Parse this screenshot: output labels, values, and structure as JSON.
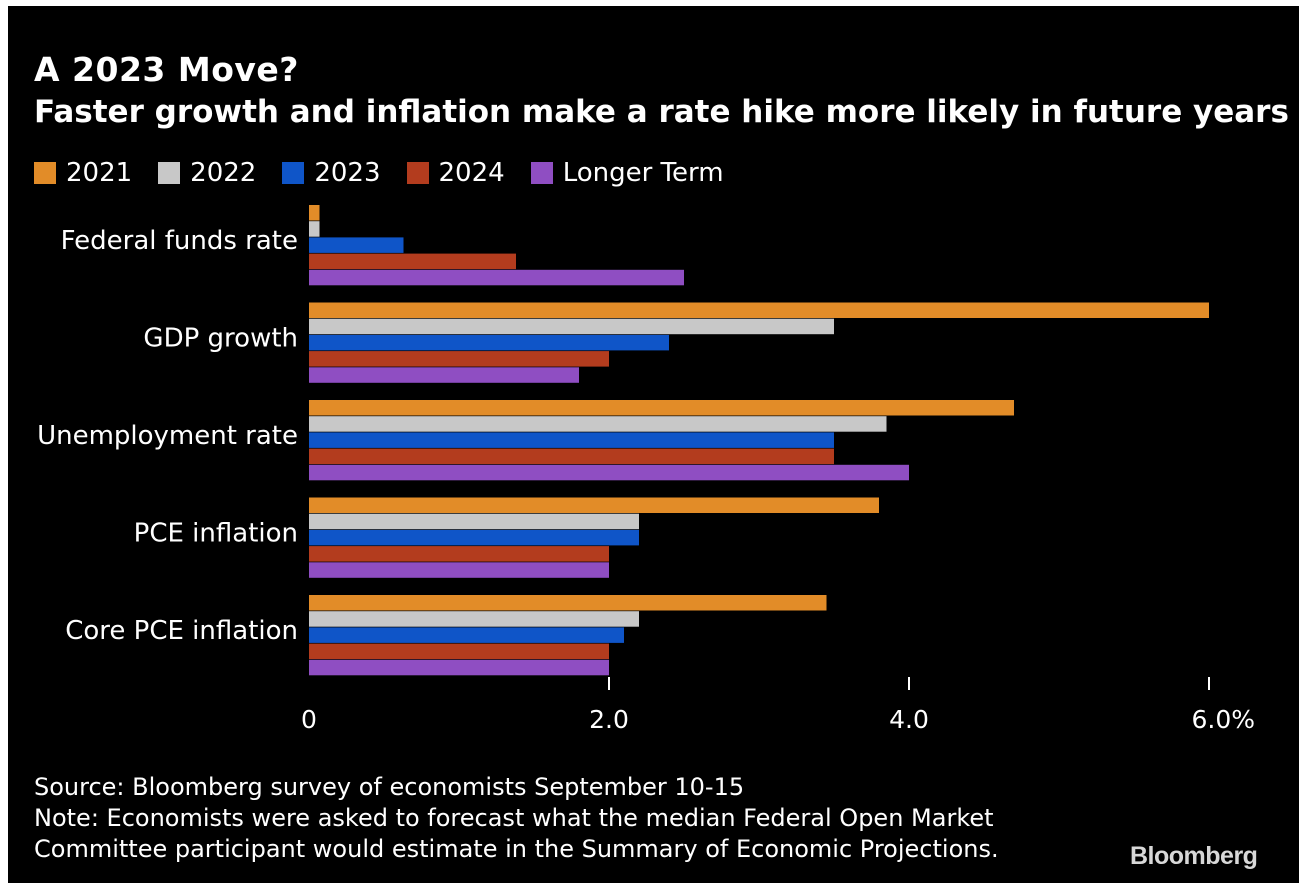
{
  "title": "A 2023 Move?",
  "subtitle": "Faster growth and inflation make a rate hike more likely in future years",
  "source": "Source: Bloomberg survey of economists September 10-15",
  "note_line1": "Note: Economists were asked to forecast what the median Federal Open Market",
  "note_line2": "Committee participant would estimate in the Summary of Economic Projections.",
  "logo": "Bloomberg",
  "legend": [
    {
      "label": "2021",
      "color": "#e28c28"
    },
    {
      "label": "2022",
      "color": "#c8c8c8"
    },
    {
      "label": "2023",
      "color": "#0f55c8"
    },
    {
      "label": "2024",
      "color": "#b33c1e"
    },
    {
      "label": "Longer Term",
      "color": "#8f4ec2"
    }
  ],
  "chart_data": {
    "type": "bar",
    "orientation": "horizontal",
    "categories": [
      "Federal funds rate",
      "GDP growth",
      "Unemployment rate",
      "PCE inflation",
      "Core PCE inflation"
    ],
    "series": [
      {
        "name": "2021",
        "color": "#e28c28",
        "values": [
          0.07,
          6.0,
          4.7,
          3.8,
          3.45
        ]
      },
      {
        "name": "2022",
        "color": "#c8c8c8",
        "values": [
          0.07,
          3.5,
          3.85,
          2.2,
          2.2
        ]
      },
      {
        "name": "2023",
        "color": "#0f55c8",
        "values": [
          0.63,
          2.4,
          3.5,
          2.2,
          2.1
        ]
      },
      {
        "name": "2024",
        "color": "#b33c1e",
        "values": [
          1.38,
          2.0,
          3.5,
          2.0,
          2.0
        ]
      },
      {
        "name": "Longer Term",
        "color": "#8f4ec2",
        "values": [
          2.5,
          1.8,
          4.0,
          2.0,
          2.0
        ]
      }
    ],
    "xlim": [
      0,
      6.0
    ],
    "xticks": [
      0,
      2.0,
      4.0,
      6.0
    ],
    "xtick_labels": [
      "0",
      "2.0",
      "4.0",
      "6.0%"
    ],
    "grid": false,
    "legend_position": "top-left"
  }
}
